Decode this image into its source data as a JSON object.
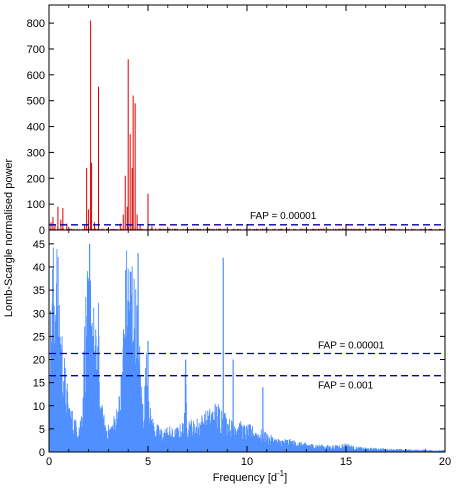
{
  "chart_data": [
    {
      "type": "line",
      "panel": "top",
      "xlim": [
        0,
        20
      ],
      "ylim": [
        0,
        870
      ],
      "xticks": [
        0,
        5,
        10,
        15,
        20
      ],
      "yticks": [
        0,
        100,
        200,
        300,
        400,
        500,
        600,
        700,
        800
      ],
      "ytick_labels": [
        "0",
        "100",
        "200",
        "300",
        "400",
        "500",
        "600",
        "700",
        "800"
      ],
      "series_color": "#e00000",
      "peaks": [
        [
          0.1,
          30
        ],
        [
          0.2,
          50
        ],
        [
          0.3,
          20
        ],
        [
          0.45,
          90
        ],
        [
          0.6,
          40
        ],
        [
          0.7,
          85
        ],
        [
          0.9,
          25
        ],
        [
          1.8,
          20
        ],
        [
          1.9,
          240
        ],
        [
          2.0,
          80
        ],
        [
          2.1,
          810
        ],
        [
          2.15,
          260
        ],
        [
          2.3,
          30
        ],
        [
          2.5,
          555
        ],
        [
          3.6,
          25
        ],
        [
          3.75,
          60
        ],
        [
          3.85,
          210
        ],
        [
          3.95,
          90
        ],
        [
          4.0,
          660
        ],
        [
          4.1,
          370
        ],
        [
          4.2,
          240
        ],
        [
          4.25,
          520
        ],
        [
          4.35,
          490
        ],
        [
          4.45,
          60
        ],
        [
          4.6,
          20
        ],
        [
          5.0,
          140
        ],
        [
          5.2,
          15
        ]
      ],
      "hlines": [
        {
          "y": 20,
          "color": "#0000aa",
          "label": "FAP = 0.00001"
        }
      ]
    },
    {
      "type": "line",
      "panel": "bottom",
      "xlim": [
        0,
        20
      ],
      "ylim": [
        0,
        48
      ],
      "xticks": [
        0,
        5,
        10,
        15,
        20
      ],
      "xtick_labels": [
        "0",
        "5",
        "10",
        "15",
        "20"
      ],
      "yticks": [
        0,
        5,
        10,
        15,
        20,
        25,
        30,
        35,
        40,
        45
      ],
      "ytick_labels": [
        "0",
        "5",
        "10",
        "15",
        "20",
        "25",
        "30",
        "35",
        "40",
        "45"
      ],
      "series_color": "#4f8fff",
      "envelope": [
        [
          0,
          20
        ],
        [
          0.1,
          36
        ],
        [
          0.2,
          46
        ],
        [
          0.3,
          44
        ],
        [
          0.4,
          47
        ],
        [
          0.5,
          40
        ],
        [
          0.6,
          30
        ],
        [
          0.7,
          26
        ],
        [
          0.8,
          20
        ],
        [
          0.9,
          16
        ],
        [
          1.0,
          12
        ],
        [
          1.2,
          9
        ],
        [
          1.4,
          7
        ],
        [
          1.6,
          8
        ],
        [
          1.7,
          14
        ],
        [
          1.8,
          30
        ],
        [
          1.9,
          40
        ],
        [
          2.0,
          38
        ],
        [
          2.1,
          43
        ],
        [
          2.2,
          36
        ],
        [
          2.3,
          30
        ],
        [
          2.4,
          26
        ],
        [
          2.5,
          33
        ],
        [
          2.6,
          12
        ],
        [
          2.8,
          8
        ],
        [
          3.0,
          6
        ],
        [
          3.2,
          7
        ],
        [
          3.4,
          10
        ],
        [
          3.6,
          14
        ],
        [
          3.8,
          36
        ],
        [
          3.9,
          45
        ],
        [
          4.0,
          46
        ],
        [
          4.1,
          44
        ],
        [
          4.2,
          47
        ],
        [
          4.3,
          40
        ],
        [
          4.4,
          36
        ],
        [
          4.5,
          34
        ],
        [
          4.6,
          22
        ],
        [
          4.7,
          14
        ],
        [
          4.8,
          12
        ],
        [
          4.9,
          22
        ],
        [
          5.0,
          24
        ],
        [
          5.1,
          10
        ],
        [
          5.3,
          7
        ],
        [
          5.5,
          6
        ],
        [
          5.8,
          5
        ],
        [
          6.0,
          6
        ],
        [
          6.3,
          5
        ],
        [
          6.6,
          6
        ],
        [
          6.8,
          7
        ],
        [
          6.9,
          20
        ],
        [
          7.0,
          8
        ],
        [
          7.3,
          7
        ],
        [
          7.6,
          8
        ],
        [
          7.9,
          9
        ],
        [
          8.2,
          10
        ],
        [
          8.4,
          11
        ],
        [
          8.6,
          11
        ],
        [
          8.8,
          10
        ],
        [
          9.0,
          8
        ],
        [
          9.2,
          7
        ],
        [
          9.4,
          8
        ],
        [
          9.6,
          7
        ],
        [
          9.9,
          6
        ],
        [
          10.2,
          6
        ],
        [
          10.5,
          5
        ],
        [
          10.8,
          5
        ],
        [
          11.1,
          4
        ],
        [
          11.5,
          3
        ],
        [
          12.0,
          3
        ],
        [
          12.5,
          2.5
        ],
        [
          13.0,
          2
        ],
        [
          13.5,
          1.8
        ],
        [
          14.0,
          1.5
        ],
        [
          14.5,
          1.5
        ],
        [
          15.0,
          2
        ],
        [
          15.5,
          1.2
        ],
        [
          16.0,
          1
        ],
        [
          17.0,
          0.8
        ],
        [
          18.0,
          0.6
        ],
        [
          19.0,
          0.5
        ],
        [
          20.0,
          0.4
        ]
      ],
      "spikes": [
        [
          2.05,
          45
        ],
        [
          4.5,
          43
        ],
        [
          8.8,
          42
        ],
        [
          9.3,
          20
        ],
        [
          6.9,
          20
        ],
        [
          10.8,
          14
        ],
        [
          5.0,
          24
        ]
      ],
      "hlines": [
        {
          "y": 21.3,
          "color": "#0000aa",
          "label": "FAP = 0.00001"
        },
        {
          "y": 16.5,
          "color": "#0000aa",
          "label": "FAP = 0.001"
        }
      ]
    }
  ],
  "shared": {
    "xlabel": "Frequency [d",
    "xlabel_sup": "-1",
    "xlabel_end": "]",
    "ylabel": "Lomb-Scargle normalised power"
  }
}
